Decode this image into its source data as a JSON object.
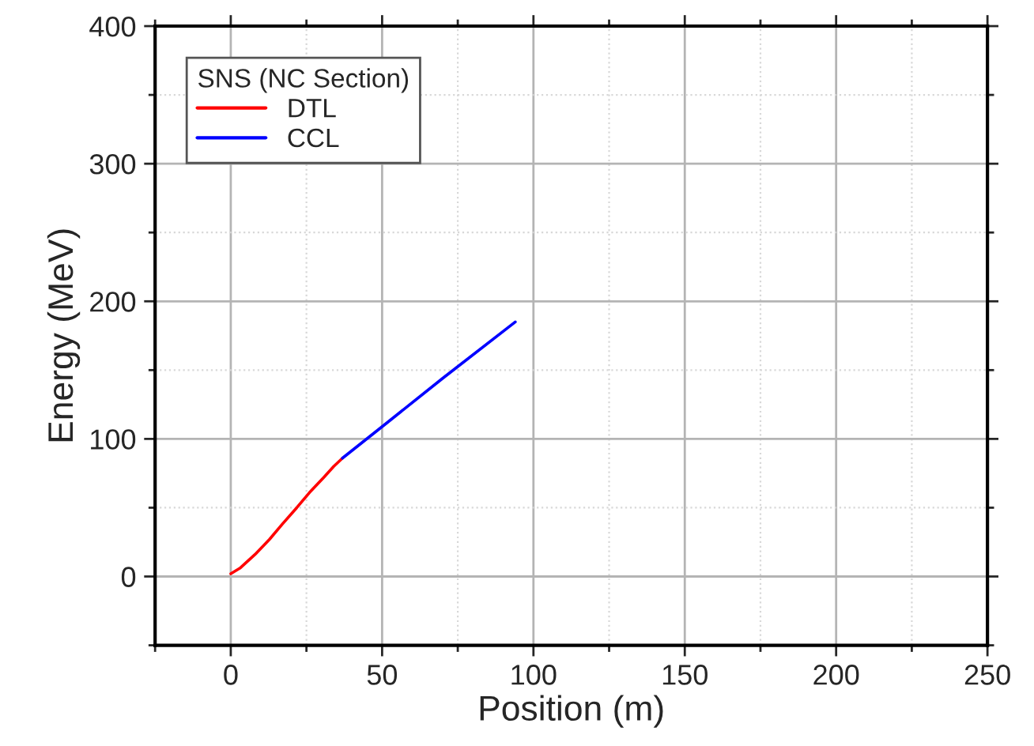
{
  "chart_data": {
    "type": "line",
    "xlabel": "Position (m)",
    "ylabel": "Energy (MeV)",
    "legend_title": "SNS (NC Section)",
    "legend": "top left",
    "grid": true,
    "marker": "none",
    "line_style": "solid",
    "xlim": [
      -25,
      250
    ],
    "ylim": [
      -50,
      400
    ],
    "xticks": [
      {
        "value": -25,
        "label": null
      },
      0,
      {
        "value": 25,
        "label": null
      },
      50,
      {
        "value": 75,
        "label": null
      },
      100,
      {
        "value": 125,
        "label": null
      },
      150,
      {
        "value": 175,
        "label": null
      },
      200,
      {
        "value": 225,
        "label": null
      },
      250
    ],
    "yticks": [
      {
        "value": -50,
        "label": null
      },
      0,
      {
        "value": 50,
        "label": null
      },
      100,
      {
        "value": 150,
        "label": null
      },
      200,
      {
        "value": 250,
        "label": null
      },
      300,
      {
        "value": 350,
        "label": null
      },
      400
    ],
    "series": [
      {
        "name": "DTL",
        "color": "#ff0000",
        "x": [
          0,
          3,
          8,
          12.8,
          17,
          21.8,
          26,
          30.7,
          34,
          36.9
        ],
        "values": [
          2,
          6,
          16,
          27,
          38,
          50,
          61,
          72,
          80,
          86
        ]
      },
      {
        "name": "CCL",
        "color": "#0000ff",
        "x": [
          36.9,
          51.2,
          70,
          94
        ],
        "values": [
          86,
          111,
          144,
          185
        ]
      }
    ]
  }
}
